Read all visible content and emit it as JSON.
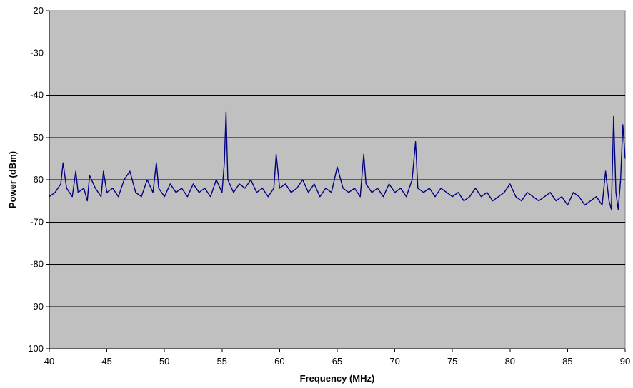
{
  "chart_data": {
    "type": "line",
    "title": "",
    "xlabel": "Frequency (MHz)",
    "ylabel": "Power (dBm)",
    "xlim": [
      40,
      90
    ],
    "ylim": [
      -100,
      -20
    ],
    "xticks": [
      40,
      45,
      50,
      55,
      60,
      65,
      70,
      75,
      80,
      85,
      90
    ],
    "yticks": [
      -20,
      -30,
      -40,
      -50,
      -60,
      -70,
      -80,
      -90,
      -100
    ],
    "grid": "horizontal",
    "legend": "none",
    "colors": {
      "plot_bg": "#c0c0c0",
      "line": "#000080",
      "grid": "#000000"
    },
    "series": [
      {
        "x": [
          40.0,
          40.5,
          41.0,
          41.2,
          41.5,
          42.0,
          42.3,
          42.5,
          43.0,
          43.3,
          43.5,
          44.0,
          44.5,
          44.7,
          45.0,
          45.5,
          46.0,
          46.5,
          47.0,
          47.5,
          48.0,
          48.5,
          49.0,
          49.3,
          49.5,
          50.0,
          50.5,
          51.0,
          51.5,
          52.0,
          52.5,
          53.0,
          53.5,
          54.0,
          54.5,
          55.0,
          55.2,
          55.35,
          55.5,
          56.0,
          56.5,
          57.0,
          57.5,
          58.0,
          58.5,
          59.0,
          59.5,
          59.7,
          60.0,
          60.5,
          61.0,
          61.5,
          62.0,
          62.5,
          63.0,
          63.5,
          64.0,
          64.5,
          65.0,
          65.5,
          66.0,
          66.5,
          67.0,
          67.3,
          67.5,
          68.0,
          68.5,
          69.0,
          69.5,
          70.0,
          70.5,
          71.0,
          71.5,
          71.8,
          72.0,
          72.5,
          73.0,
          73.5,
          74.0,
          74.5,
          75.0,
          75.5,
          76.0,
          76.5,
          77.0,
          77.5,
          78.0,
          78.5,
          79.0,
          79.5,
          80.0,
          80.5,
          81.0,
          81.5,
          82.0,
          82.5,
          83.0,
          83.5,
          84.0,
          84.5,
          85.0,
          85.5,
          86.0,
          86.5,
          87.0,
          87.5,
          88.0,
          88.3,
          88.6,
          88.8,
          89.0,
          89.2,
          89.4,
          89.6,
          89.8,
          90.0
        ],
        "values": [
          -64,
          -63,
          -61,
          -56,
          -62,
          -64,
          -58,
          -63,
          -62,
          -65,
          -59,
          -62,
          -64,
          -58,
          -63,
          -62,
          -64,
          -60,
          -58,
          -63,
          -64,
          -60,
          -63,
          -56,
          -62,
          -64,
          -61,
          -63,
          -62,
          -64,
          -61,
          -63,
          -62,
          -64,
          -60,
          -63,
          -56,
          -44,
          -60,
          -63,
          -61,
          -62,
          -60,
          -63,
          -62,
          -64,
          -62,
          -54,
          -62,
          -61,
          -63,
          -62,
          -60,
          -63,
          -61,
          -64,
          -62,
          -63,
          -57,
          -62,
          -63,
          -62,
          -64,
          -54,
          -61,
          -63,
          -62,
          -64,
          -61,
          -63,
          -62,
          -64,
          -60,
          -51,
          -62,
          -63,
          -62,
          -64,
          -62,
          -63,
          -64,
          -63,
          -65,
          -64,
          -62,
          -64,
          -63,
          -65,
          -64,
          -63,
          -61,
          -64,
          -65,
          -63,
          -64,
          -65,
          -64,
          -63,
          -65,
          -64,
          -66,
          -63,
          -64,
          -66,
          -65,
          -64,
          -66,
          -58,
          -65,
          -67,
          -45,
          -63,
          -67,
          -60,
          -47,
          -55
        ]
      }
    ]
  }
}
